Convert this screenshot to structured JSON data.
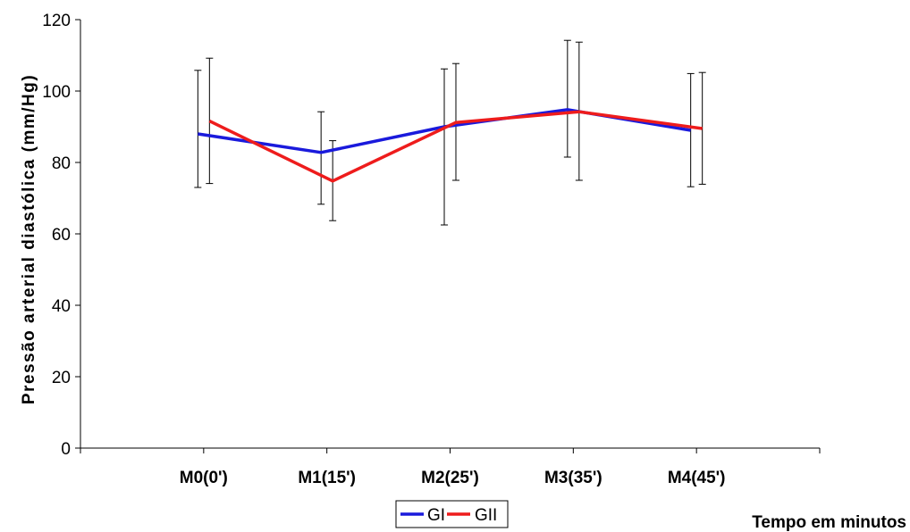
{
  "chart_data": {
    "type": "line",
    "title": "",
    "xlabel": "Tempo em minutos",
    "ylabel": "Pressão arterial diastólica (mm/Hg)",
    "categories": [
      "M0(0')",
      "M1(15')",
      "M2(25')",
      "M3(35')",
      "M4(45')"
    ],
    "ylim": [
      0,
      120
    ],
    "yticks": [
      0,
      20,
      40,
      60,
      80,
      100,
      120
    ],
    "grid": false,
    "legend_position": "bottom-center",
    "series": [
      {
        "name": "GI",
        "color": "#1a1adc",
        "values": [
          88,
          82.8,
          90,
          94.8,
          89
        ],
        "error_low": [
          73,
          68.3,
          62.5,
          81.5,
          73.2
        ],
        "error_high": [
          105.8,
          94.2,
          106.2,
          114.2,
          104.9
        ]
      },
      {
        "name": "GII",
        "color": "#ee1c1c",
        "values": [
          91.6,
          74.8,
          91.2,
          94.2,
          89.5
        ],
        "error_low": [
          74.1,
          63.7,
          75,
          75,
          73.9
        ],
        "error_high": [
          109.2,
          86.1,
          107.7,
          113.7,
          105.2
        ]
      }
    ]
  }
}
